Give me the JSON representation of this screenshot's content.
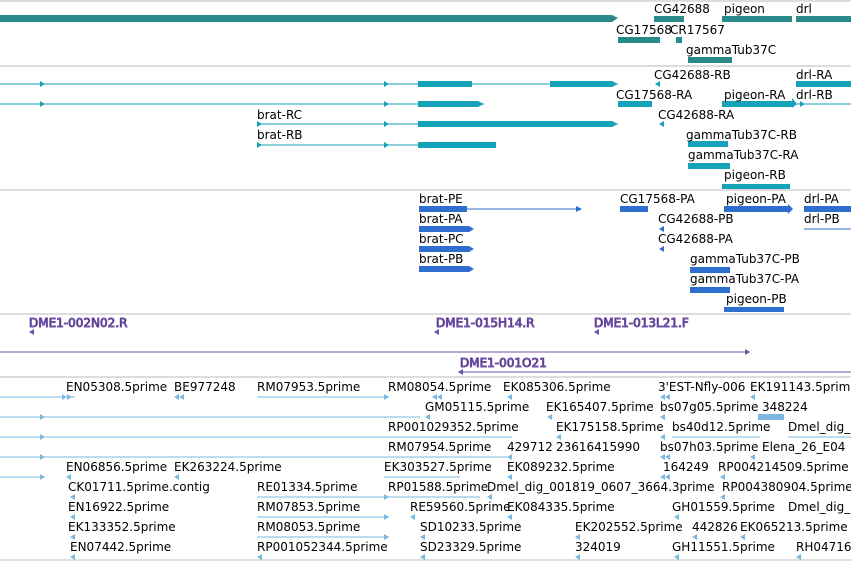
{
  "tracks": {
    "gene": {
      "color": "#2a8a8a",
      "labels": [
        "CG42688",
        "pigeon",
        "drl",
        "CG17568",
        "CR17567",
        "gammaTub37C"
      ]
    },
    "transcripts": {
      "color": "#14a3b8",
      "labels": [
        "brat-RC",
        "brat-RB",
        "CG42688-RB",
        "drl-RA",
        "CG17568-RA",
        "pigeon-RA",
        "drl-RB",
        "CG42688-RA",
        "gammaTub37C-RB",
        "gammaTub37C-RA",
        "pigeon-RB"
      ]
    },
    "proteins": {
      "color": "#2e6ecf",
      "labels": [
        "brat-PE",
        "CG17568-PA",
        "pigeon-PA",
        "drl-PA",
        "brat-PA",
        "CG42688-PB",
        "drl-PB",
        "brat-PC",
        "CG42688-PA",
        "brat-PB",
        "gammaTub37C-PB",
        "gammaTub37C-PA",
        "pigeon-PB"
      ]
    },
    "clones": {
      "color": "#7050a8",
      "labels": [
        "DME1-002N02.R",
        "DME1-015H14.R",
        "DME1-013L21.F",
        "DME1-001O21"
      ]
    },
    "ests": {
      "color": "#7ab8e0",
      "labels": [
        "EN05308.5prime",
        "BE977248",
        "RM07953.5prime",
        "RM08054.5prime",
        "EK085306.5prime",
        "3'EST-Nfly-006",
        "EK191143.5prime",
        "GM05115.5prime",
        "EK165407.5prime",
        "bs07g05.5prime",
        "348224",
        "RP001029352.5prime",
        "EK175158.5prime",
        "bs40d12.5prime",
        "Dmel_dig_",
        "RM07954.5prime",
        "429712",
        "23616415990",
        "bs07h03.5prime",
        "Elena_26_E04",
        "EN06856.5prime",
        "EK263224.5prime",
        "EK303527.5prime",
        "EK089232.5prime",
        "164249",
        "RP004214509.5prime",
        "CK01711.5prime.contig",
        "RE01334.5prime",
        "RP01588.5prime",
        "Dmel_dig_001819_0607_3664.3prime",
        "RP004380904.5prime",
        "EN16922.5prime",
        "RM07853.5prime",
        "RE59560.5prime",
        "EK084335.5prime",
        "GH01559.5prime",
        "Dmel_dig_",
        "EK133352.5prime",
        "RM08053.5prime",
        "SD10233.5prime",
        "EK202552.5prime",
        "442826",
        "EK065213.5prime",
        "EN07442.5prime",
        "RP001052344.5prime",
        "SD23329.5prime",
        "324019",
        "GH11551.5prime",
        "RH04716"
      ]
    }
  }
}
